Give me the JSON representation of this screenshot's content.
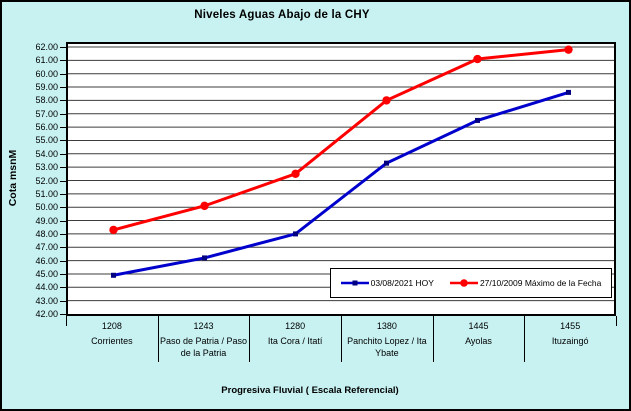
{
  "frame": {
    "background_color": "#C8F2F2",
    "border_color": "#000000"
  },
  "chart_data": {
    "type": "line",
    "title": "Niveles Aguas Abajo de la CHY",
    "ylabel": "Cota msnM",
    "xlabel": "Progresiva Fluvial ( Escala Referencial)",
    "ylim": [
      42,
      62
    ],
    "ytick_step": 1,
    "ytick_decimals": 2,
    "grid": "horizontal",
    "plot_bg": "#FFFFFF",
    "gridline_color": "#3C3C3C",
    "legend_position": "inside-bottom-right",
    "categories": [
      {
        "km": "1208",
        "name": "Corrientes"
      },
      {
        "km": "1243",
        "name": "Paso de Patria / Paso de la Patria"
      },
      {
        "km": "1280",
        "name": "Ita Cora / Itatí"
      },
      {
        "km": "1380",
        "name": "Panchito Lopez / Ita Ybate"
      },
      {
        "km": "1445",
        "name": "Ayolas"
      },
      {
        "km": "1455",
        "name": "Ituzaingó"
      }
    ],
    "series": [
      {
        "name": "03/08/2021 HOY",
        "color": "#0000CC",
        "marker": "square",
        "marker_color": "#000080",
        "values": [
          44.9,
          46.2,
          48.0,
          53.3,
          56.5,
          58.6
        ]
      },
      {
        "name": "27/10/2009 Máximo de la Fecha",
        "color": "#FF0000",
        "marker": "circle",
        "marker_color": "#FF0000",
        "values": [
          48.3,
          50.1,
          52.5,
          58.0,
          61.1,
          61.8
        ]
      }
    ]
  }
}
